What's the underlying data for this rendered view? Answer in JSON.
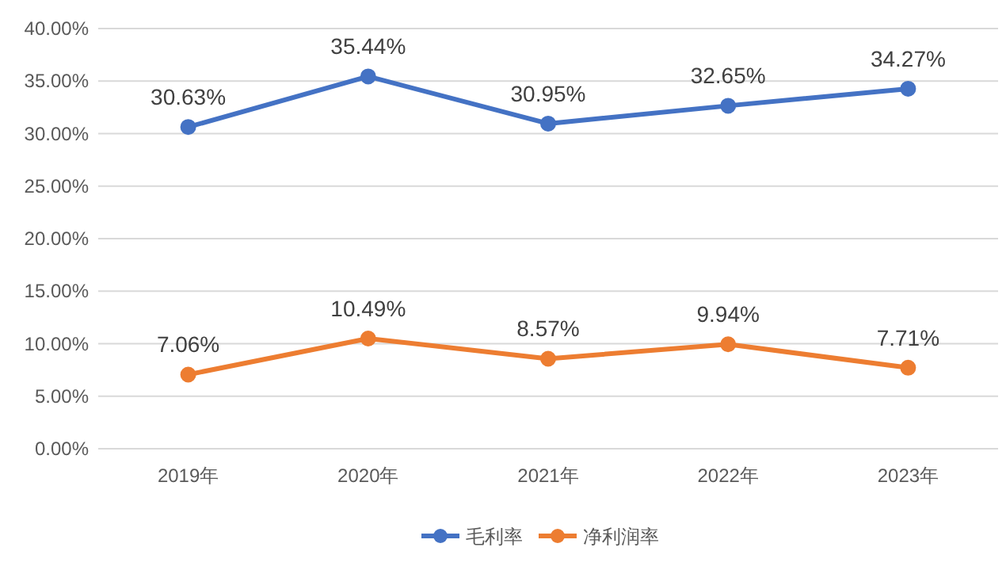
{
  "chart_data": {
    "type": "line",
    "categories": [
      "2019年",
      "2020年",
      "2021年",
      "2022年",
      "2023年"
    ],
    "series": [
      {
        "name": "毛利率",
        "color": "#4472c4",
        "values": [
          30.63,
          35.44,
          30.95,
          32.65,
          34.27
        ],
        "value_labels": [
          "30.63%",
          "35.44%",
          "30.95%",
          "32.65%",
          "34.27%"
        ]
      },
      {
        "name": "净利润率",
        "color": "#ed7d31",
        "values": [
          7.06,
          10.49,
          8.57,
          9.94,
          7.71
        ],
        "value_labels": [
          "7.06%",
          "10.49%",
          "8.57%",
          "9.94%",
          "7.71%"
        ]
      }
    ],
    "ylim": [
      0,
      40
    ],
    "yticks": [
      {
        "value": 0,
        "label": "0.00%"
      },
      {
        "value": 5,
        "label": "5.00%"
      },
      {
        "value": 10,
        "label": "10.00%"
      },
      {
        "value": 15,
        "label": "15.00%"
      },
      {
        "value": 20,
        "label": "20.00%"
      },
      {
        "value": 25,
        "label": "25.00%"
      },
      {
        "value": 30,
        "label": "30.00%"
      },
      {
        "value": 35,
        "label": "35.00%"
      },
      {
        "value": 40,
        "label": "40.00%"
      }
    ],
    "grid": "y",
    "legend": "bottom",
    "marker": "circle",
    "line_style": "solid"
  }
}
